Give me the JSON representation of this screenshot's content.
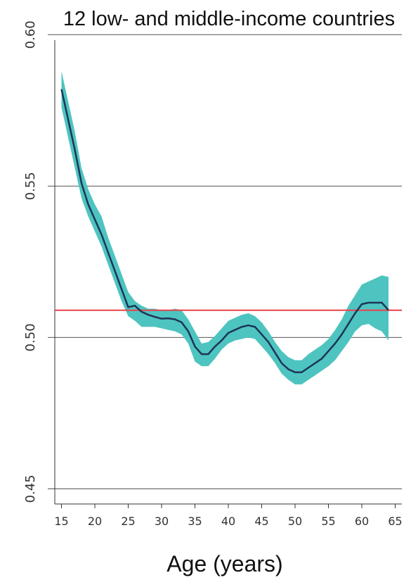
{
  "chart_data": {
    "type": "line",
    "title": "12 low- and middle-income countries",
    "xlabel": "Age (years)",
    "ylabel": "",
    "xlim": [
      14,
      66
    ],
    "ylim": [
      0.445,
      0.601
    ],
    "yticks": [
      0.45,
      0.5,
      0.55,
      0.6
    ],
    "ytick_labels": [
      "0.45",
      "0.50",
      "0.55",
      "0.60"
    ],
    "xticks": [
      15,
      20,
      25,
      30,
      35,
      40,
      45,
      50,
      55,
      60,
      65
    ],
    "xtick_labels": [
      "15",
      "20",
      "25",
      "30",
      "35",
      "40",
      "45",
      "50",
      "55",
      "60",
      "65"
    ],
    "grid": "horizontal",
    "reference_line": {
      "y": 0.509,
      "color": "#e8434c"
    },
    "series": [
      {
        "x": [
          15,
          16,
          17,
          18,
          19,
          20,
          21,
          22,
          23,
          24,
          25,
          26,
          27,
          28,
          29,
          30,
          31,
          32,
          33,
          34,
          35,
          36,
          37,
          38,
          39,
          40,
          41,
          42,
          43,
          44,
          45,
          46,
          47,
          48,
          49,
          50,
          51,
          52,
          53,
          54,
          55,
          56,
          57,
          58,
          59,
          60,
          61,
          62,
          63,
          64
        ],
        "y": [
          0.582,
          0.572,
          0.562,
          0.551,
          0.544,
          0.539,
          0.534,
          0.528,
          0.522,
          0.516,
          0.51,
          0.5105,
          0.5085,
          0.5075,
          0.5068,
          0.5062,
          0.5063,
          0.506,
          0.505,
          0.502,
          0.497,
          0.4945,
          0.4945,
          0.497,
          0.499,
          0.5015,
          0.5025,
          0.5035,
          0.504,
          0.5035,
          0.501,
          0.4985,
          0.495,
          0.4915,
          0.4895,
          0.4885,
          0.4885,
          0.49,
          0.4915,
          0.493,
          0.4955,
          0.498,
          0.501,
          0.5045,
          0.508,
          0.511,
          0.5115,
          0.5115,
          0.5115,
          0.509
        ],
        "lower": [
          0.576,
          0.566,
          0.556,
          0.546,
          0.54,
          0.535,
          0.53,
          0.524,
          0.518,
          0.512,
          0.507,
          0.5055,
          0.5035,
          0.5035,
          0.5035,
          0.503,
          0.5025,
          0.502,
          0.501,
          0.498,
          0.492,
          0.4905,
          0.4905,
          0.493,
          0.496,
          0.498,
          0.499,
          0.4995,
          0.5,
          0.4995,
          0.497,
          0.4945,
          0.4915,
          0.488,
          0.486,
          0.4845,
          0.4845,
          0.486,
          0.4875,
          0.489,
          0.4905,
          0.4925,
          0.4955,
          0.4985,
          0.502,
          0.504,
          0.5045,
          0.503,
          0.502,
          0.499
        ],
        "upper": [
          0.588,
          0.578,
          0.568,
          0.556,
          0.549,
          0.544,
          0.54,
          0.533,
          0.527,
          0.521,
          0.515,
          0.512,
          0.5105,
          0.5095,
          0.5095,
          0.509,
          0.509,
          0.5095,
          0.509,
          0.506,
          0.502,
          0.498,
          0.4985,
          0.5005,
          0.503,
          0.5055,
          0.5065,
          0.5075,
          0.508,
          0.507,
          0.505,
          0.502,
          0.4985,
          0.4955,
          0.4935,
          0.4925,
          0.4925,
          0.4945,
          0.496,
          0.4975,
          0.4995,
          0.5025,
          0.506,
          0.5105,
          0.514,
          0.5175,
          0.5185,
          0.5195,
          0.5205,
          0.52
        ],
        "line_color": "#1d3557",
        "band_color": "#4ec4c0"
      }
    ]
  }
}
